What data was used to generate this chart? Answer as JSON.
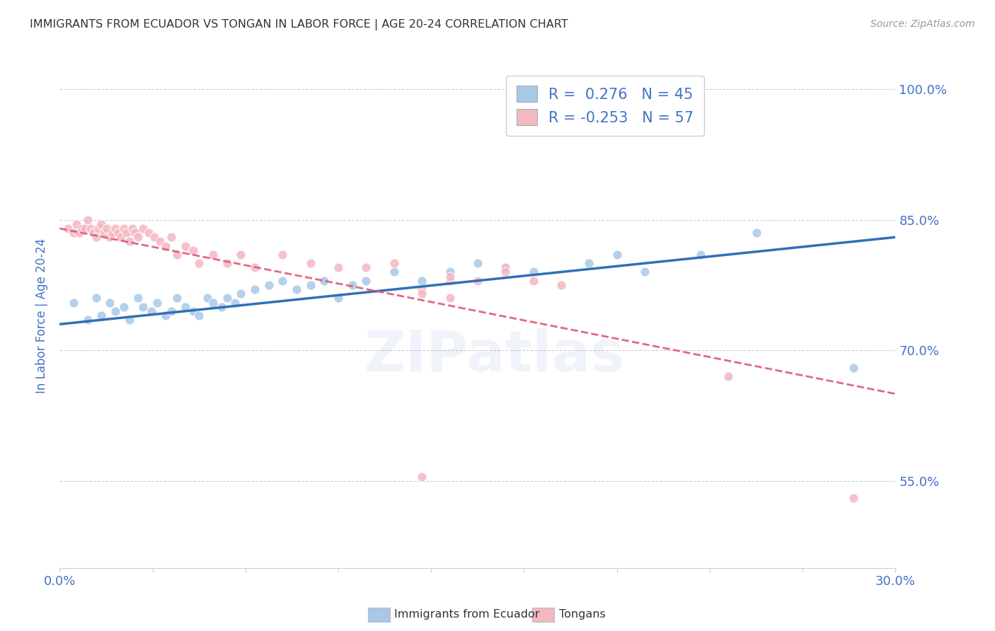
{
  "title": "IMMIGRANTS FROM ECUADOR VS TONGAN IN LABOR FORCE | AGE 20-24 CORRELATION CHART",
  "source": "Source: ZipAtlas.com",
  "ylabel": "In Labor Force | Age 20-24",
  "xmin": 0.0,
  "xmax": 0.3,
  "ymin": 0.45,
  "ymax": 1.03,
  "yticks": [
    0.55,
    0.7,
    0.85,
    1.0
  ],
  "ytick_labels": [
    "55.0%",
    "70.0%",
    "85.0%",
    "100.0%"
  ],
  "watermark": "ZIPatlas",
  "blue_color": "#a8c8e8",
  "pink_color": "#f4b8c0",
  "trend_blue": "#3070b8",
  "trend_pink": "#e05878",
  "background_color": "#ffffff",
  "grid_color": "#cccccc",
  "title_color": "#333333",
  "axis_label_color": "#4472c4",
  "tick_color": "#4472c4",
  "ecuador_points_x": [
    0.005,
    0.01,
    0.013,
    0.015,
    0.018,
    0.02,
    0.023,
    0.025,
    0.028,
    0.03,
    0.033,
    0.035,
    0.038,
    0.04,
    0.042,
    0.045,
    0.048,
    0.05,
    0.053,
    0.055,
    0.058,
    0.06,
    0.063,
    0.065,
    0.07,
    0.075,
    0.08,
    0.085,
    0.09,
    0.095,
    0.1,
    0.105,
    0.11,
    0.12,
    0.13,
    0.14,
    0.15,
    0.16,
    0.17,
    0.19,
    0.2,
    0.21,
    0.23,
    0.25,
    0.285
  ],
  "ecuador_points_y": [
    0.755,
    0.735,
    0.76,
    0.74,
    0.755,
    0.745,
    0.75,
    0.735,
    0.76,
    0.75,
    0.745,
    0.755,
    0.74,
    0.745,
    0.76,
    0.75,
    0.745,
    0.74,
    0.76,
    0.755,
    0.75,
    0.76,
    0.755,
    0.765,
    0.77,
    0.775,
    0.78,
    0.77,
    0.775,
    0.78,
    0.76,
    0.775,
    0.78,
    0.79,
    0.78,
    0.79,
    0.8,
    0.795,
    0.79,
    0.8,
    0.81,
    0.79,
    0.81,
    0.835,
    0.68
  ],
  "tongan_points_x": [
    0.003,
    0.005,
    0.006,
    0.007,
    0.008,
    0.009,
    0.01,
    0.011,
    0.012,
    0.013,
    0.014,
    0.015,
    0.016,
    0.017,
    0.018,
    0.019,
    0.02,
    0.021,
    0.022,
    0.023,
    0.024,
    0.025,
    0.026,
    0.027,
    0.028,
    0.03,
    0.032,
    0.034,
    0.036,
    0.038,
    0.04,
    0.042,
    0.045,
    0.048,
    0.05,
    0.055,
    0.06,
    0.065,
    0.07,
    0.08,
    0.09,
    0.1,
    0.11,
    0.12,
    0.13,
    0.14,
    0.15,
    0.16,
    0.17,
    0.18,
    0.13,
    0.14,
    0.16,
    0.14,
    0.13,
    0.285,
    0.24
  ],
  "tongan_points_y": [
    0.84,
    0.835,
    0.845,
    0.835,
    0.84,
    0.84,
    0.85,
    0.84,
    0.835,
    0.83,
    0.84,
    0.845,
    0.835,
    0.84,
    0.83,
    0.835,
    0.84,
    0.835,
    0.83,
    0.84,
    0.835,
    0.825,
    0.84,
    0.835,
    0.83,
    0.84,
    0.835,
    0.83,
    0.825,
    0.82,
    0.83,
    0.81,
    0.82,
    0.815,
    0.8,
    0.81,
    0.8,
    0.81,
    0.795,
    0.81,
    0.8,
    0.795,
    0.795,
    0.8,
    0.77,
    0.78,
    0.78,
    0.795,
    0.78,
    0.775,
    0.765,
    0.785,
    0.79,
    0.76,
    0.555,
    0.53,
    0.67
  ],
  "ecuador_trend_x0": 0.0,
  "ecuador_trend_y0": 0.73,
  "ecuador_trend_x1": 0.3,
  "ecuador_trend_y1": 0.83,
  "tongan_trend_x0": 0.0,
  "tongan_trend_y0": 0.84,
  "tongan_trend_x1": 0.3,
  "tongan_trend_y1": 0.65
}
